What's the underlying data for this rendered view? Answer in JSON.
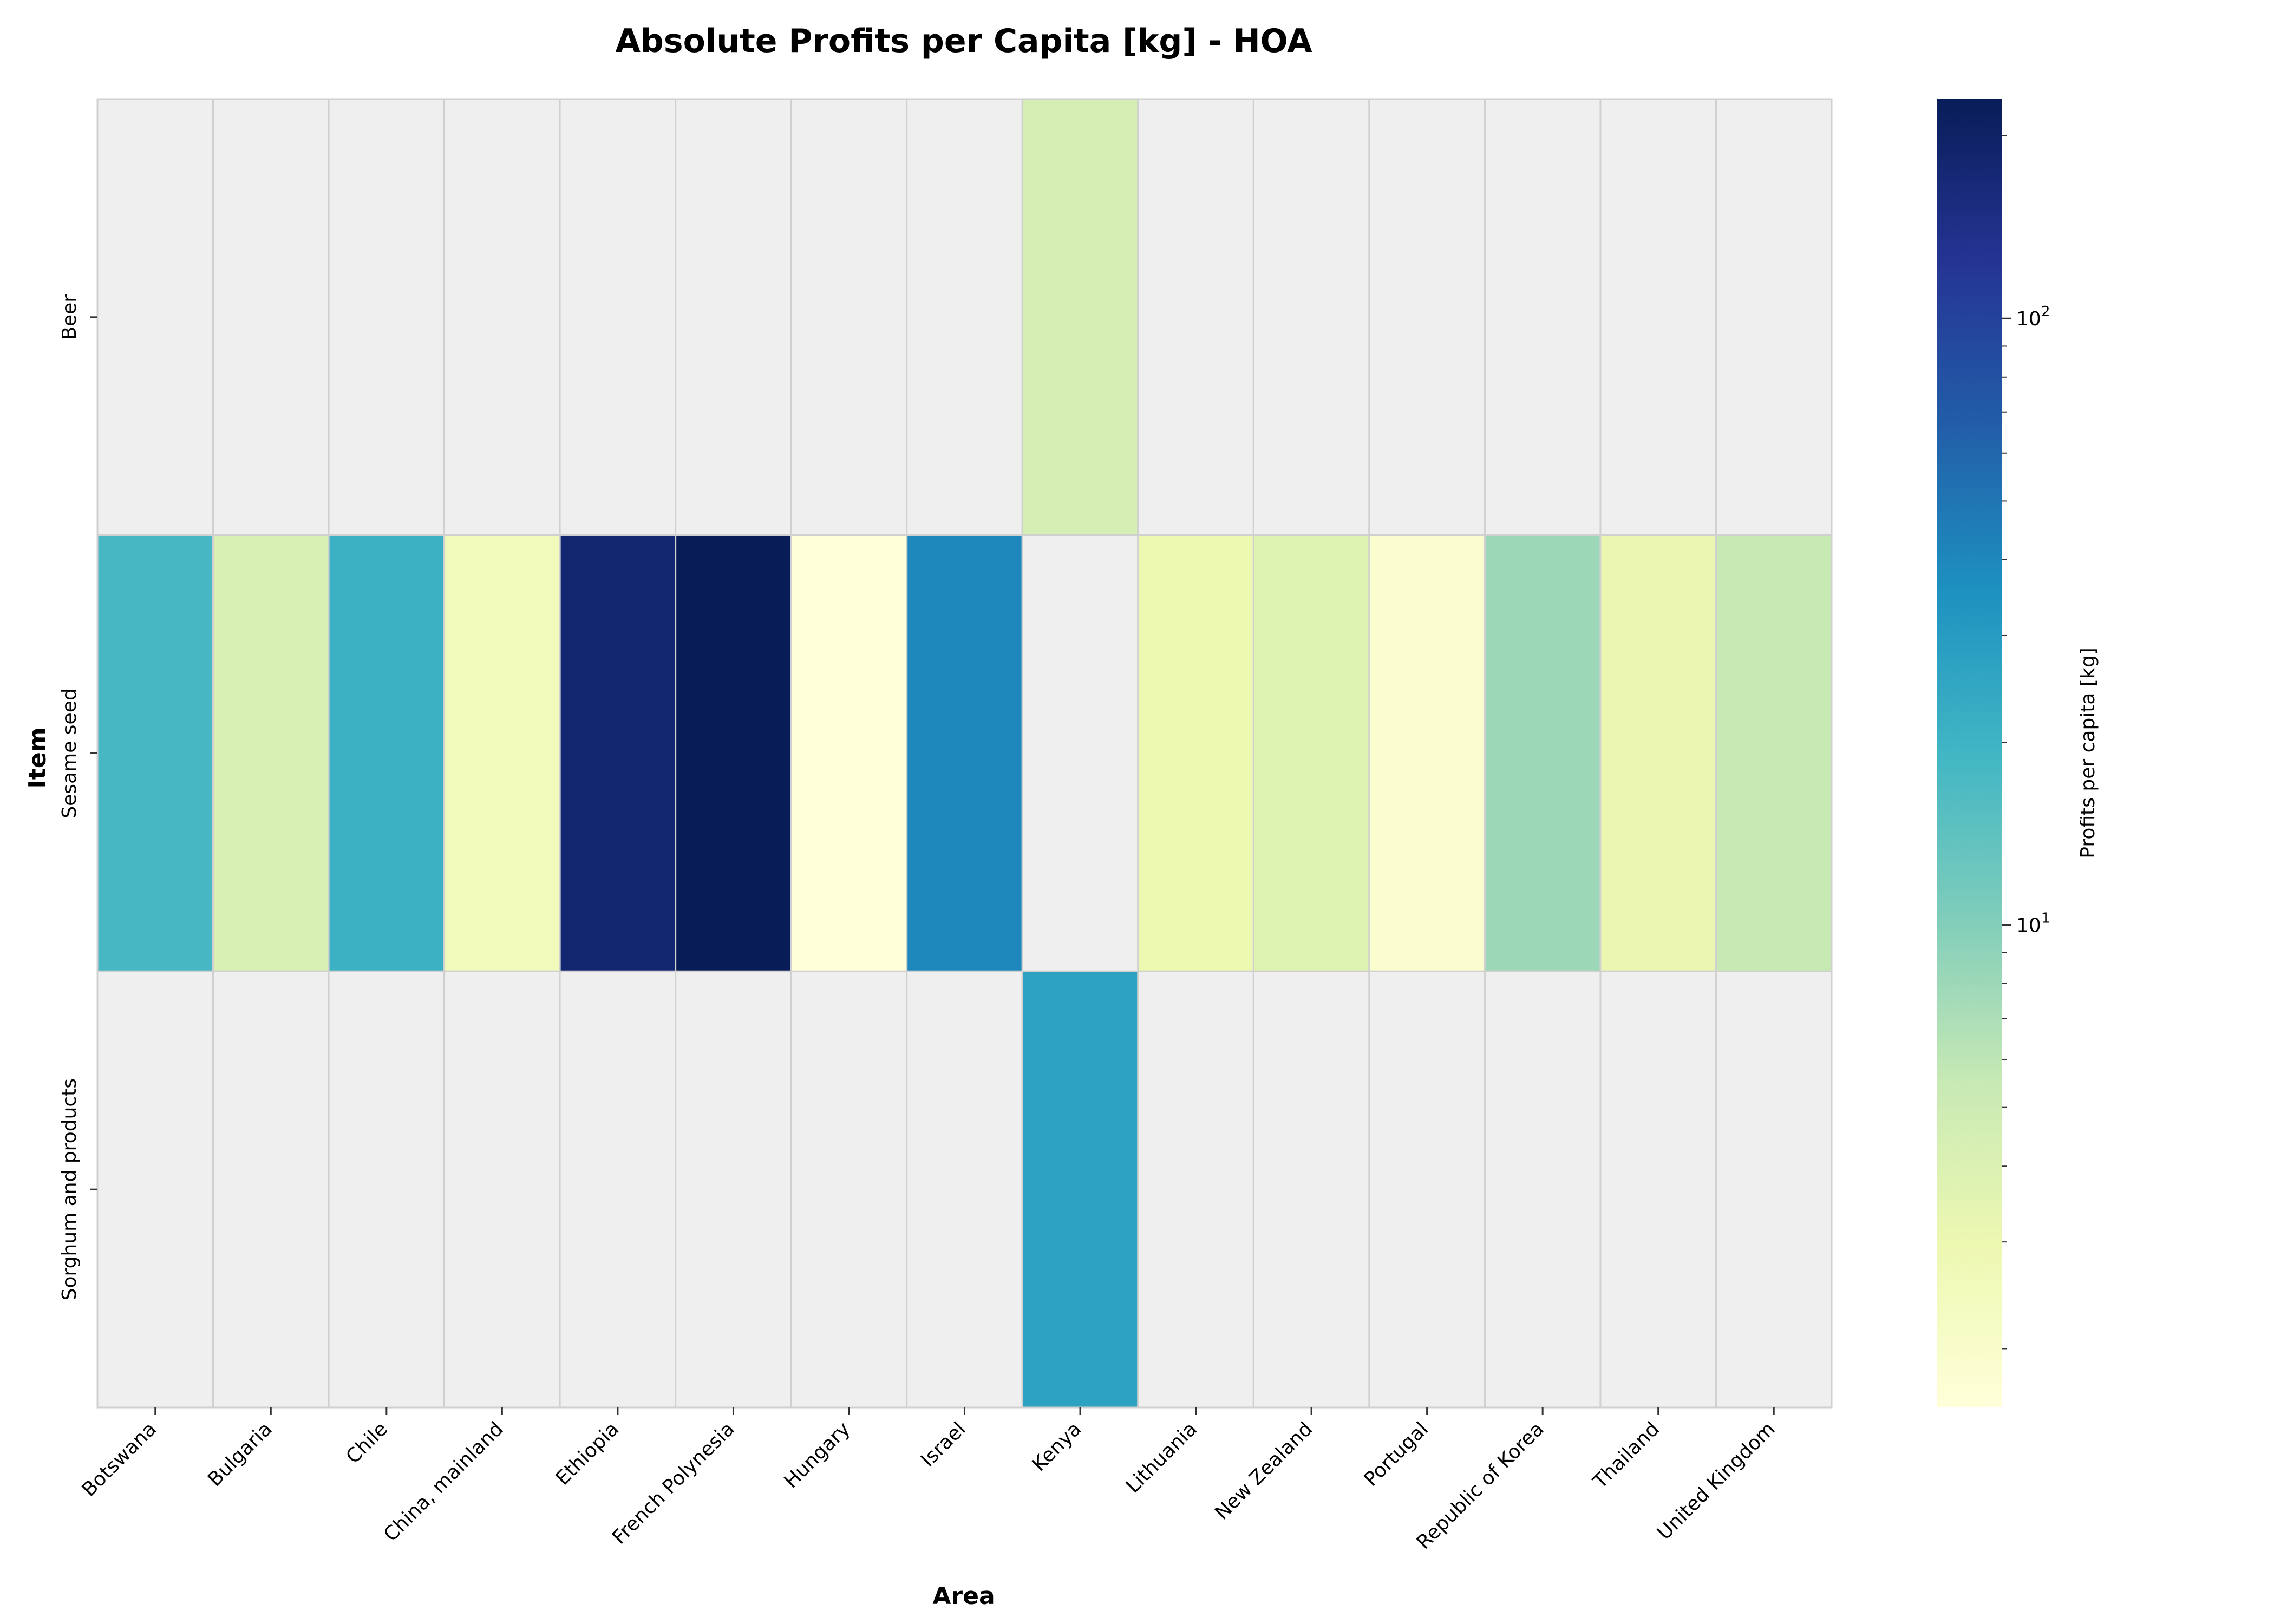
{
  "chart_data": {
    "type": "heatmap",
    "title": "Absolute Profits per Capita [kg] - HOA",
    "xlabel": "Area",
    "ylabel": "Item",
    "x_categories": [
      "Botswana",
      "Bulgaria",
      "Chile",
      "China, mainland",
      "Ethiopia",
      "French Polynesia",
      "Hungary",
      "Israel",
      "Kenya",
      "Lithuania",
      "New Zealand",
      "Portugal",
      "Republic of Korea",
      "Thailand",
      "United Kingdom"
    ],
    "y_categories": [
      "Beer",
      "Sesame seed",
      "Sorghum and products"
    ],
    "values": [
      [
        null,
        null,
        null,
        null,
        null,
        null,
        null,
        null,
        4.5,
        null,
        null,
        null,
        null,
        null,
        null
      ],
      [
        18,
        4.2,
        21,
        2.6,
        180,
        230,
        1.6,
        40,
        null,
        3.0,
        3.8,
        1.9,
        8.0,
        3.1,
        5.5
      ],
      [
        null,
        null,
        null,
        null,
        null,
        null,
        null,
        null,
        27,
        null,
        null,
        null,
        null,
        null,
        null
      ]
    ],
    "missing_color": "#efefef",
    "colorbar": {
      "label": "Profits per capita [kg]",
      "scale": "log",
      "range": [
        1.6,
        230
      ],
      "cmap": "YlGnBu",
      "major_ticks": [
        {
          "base": "10",
          "exp": "1",
          "value": 10
        },
        {
          "base": "10",
          "exp": "2",
          "value": 100
        }
      ],
      "minor_ticks": [
        2,
        3,
        4,
        5,
        6,
        7,
        8,
        9,
        20,
        30,
        40,
        50,
        60,
        70,
        80,
        90,
        200
      ]
    },
    "grid": true,
    "legend": "colorbar-right"
  }
}
